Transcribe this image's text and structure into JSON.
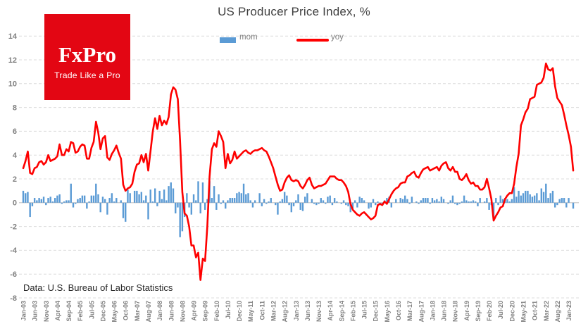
{
  "title": "US Producer Price Index, %",
  "logo": {
    "brand": "FxPro",
    "tagline": "Trade Like a Pro",
    "bg_color": "#e30613",
    "text_color": "#ffffff"
  },
  "legend": {
    "mom_label": "mom",
    "yoy_label": "yoy"
  },
  "source_note": "Data: U.S. Bureau of Labor Statistics",
  "colors": {
    "mom_bar": "#5B9BD5",
    "yoy_line": "#FE0000",
    "grid": "#dcdcdc",
    "zero_line": "#c3c3c3",
    "axis_text": "#808080"
  },
  "chart_data": {
    "type": "bar+line combo",
    "title": "US Producer Price Index, %",
    "frequency": "monthly",
    "start_month": "Jan-03",
    "end_month": "Mar-23",
    "ylim": [
      -8,
      14
    ],
    "y_ticks": [
      -8,
      -6,
      -4,
      -2,
      0,
      2,
      4,
      6,
      8,
      10,
      12,
      14
    ],
    "grid": "horizontal dashed",
    "legend_position": "top center",
    "x_tick_every": 5,
    "x_tick_labels": [
      "Jan-03",
      "Jun-03",
      "Nov-03",
      "Apr-04",
      "Sep-04",
      "Feb-05",
      "Jul-05",
      "Dec-05",
      "May-06",
      "Oct-06",
      "Mar-07",
      "Aug-07",
      "Jan-08",
      "Jun-08",
      "Nov-08",
      "Apr-09",
      "Sep-09",
      "Feb-10",
      "Jul-10",
      "Dec-10",
      "May-11",
      "Oct-11",
      "Mar-12",
      "Aug-12",
      "Jan-13",
      "Jun-13",
      "Nov-13",
      "Apr-14",
      "Sep-14",
      "Feb-15",
      "Jul-15",
      "Dec-15",
      "May-16",
      "Oct-16",
      "Mar-17",
      "Aug-17",
      "Jan-18",
      "Jun-18",
      "Nov-18",
      "Apr-19",
      "Sep-19",
      "Feb-20",
      "Jul-20",
      "Dec-20",
      "May-21",
      "Oct-21",
      "Mar-22",
      "Aug-22",
      "Jan-23"
    ],
    "series": [
      {
        "name": "mom",
        "type": "bar",
        "color": "#5B9BD5",
        "values": [
          1.0,
          0.8,
          0.9,
          -1.2,
          -0.3,
          0.4,
          0.2,
          0.4,
          0.3,
          0.5,
          -0.2,
          0.4,
          0.5,
          0.1,
          0.4,
          0.6,
          0.7,
          -0.1,
          0.1,
          0.2,
          0.2,
          1.6,
          -0.4,
          -0.1,
          0.3,
          0.4,
          0.6,
          0.6,
          -0.5,
          0.1,
          0.6,
          0.6,
          1.6,
          0.7,
          -0.8,
          0.5,
          0.3,
          -1.0,
          0.4,
          0.8,
          0.1,
          0.4,
          0.0,
          0.2,
          -1.3,
          -1.6,
          1.1,
          0.8,
          0.0,
          1.0,
          1.0,
          0.7,
          0.9,
          0.2,
          0.6,
          -1.4,
          1.1,
          0.1,
          1.2,
          -0.3,
          1.0,
          0.3,
          1.1,
          0.2,
          1.4,
          1.7,
          1.2,
          -0.9,
          -0.4,
          -2.9,
          -2.4,
          -1.2,
          0.8,
          -0.4,
          -1.0,
          0.7,
          0.2,
          1.8,
          -0.9,
          1.7,
          -0.6,
          0.3,
          1.8,
          0.4,
          1.4,
          -0.6,
          0.7,
          -0.1,
          0.2,
          -0.5,
          0.2,
          0.4,
          0.4,
          0.4,
          0.8,
          0.9,
          0.8,
          1.6,
          0.7,
          0.8,
          0.2,
          -0.4,
          0.2,
          0.0,
          0.8,
          -0.3,
          0.3,
          -0.1,
          0.1,
          0.4,
          0.0,
          -0.2,
          -1.0,
          0.1,
          0.3,
          0.9,
          0.6,
          -0.2,
          -0.8,
          -0.3,
          0.2,
          0.7,
          -0.6,
          -0.7,
          0.5,
          0.8,
          0.0,
          0.3,
          -0.1,
          -0.2,
          -0.1,
          0.4,
          0.2,
          -0.1,
          0.5,
          0.6,
          -0.2,
          0.4,
          0.1,
          0.0,
          -0.1,
          0.2,
          -0.2,
          -0.3,
          -0.8,
          -0.5,
          0.2,
          -0.4,
          0.5,
          0.4,
          0.2,
          0.0,
          -0.5,
          -0.4,
          0.3,
          -0.2,
          0.1,
          -0.2,
          -0.1,
          0.2,
          0.4,
          0.5,
          -0.4,
          0.0,
          0.3,
          0.0,
          0.4,
          0.3,
          0.6,
          0.3,
          -0.1,
          0.5,
          0.0,
          0.1,
          -0.1,
          0.2,
          0.4,
          0.4,
          0.4,
          -0.1,
          0.4,
          0.2,
          0.3,
          0.1,
          0.5,
          0.3,
          0.0,
          -0.1,
          0.2,
          0.6,
          -0.1,
          -0.2,
          -0.1,
          0.1,
          0.6,
          0.2,
          0.1,
          0.1,
          0.2,
          0.1,
          -0.3,
          0.4,
          0.0,
          0.1,
          0.4,
          -0.6,
          -0.2,
          -1.3,
          0.4,
          -0.2,
          0.6,
          0.3,
          0.4,
          0.3,
          0.1,
          0.3,
          1.3,
          0.5,
          1.0,
          0.6,
          0.8,
          1.0,
          1.0,
          0.7,
          0.5,
          0.6,
          0.8,
          0.2,
          1.2,
          0.9,
          1.6,
          0.4,
          0.8,
          1.0,
          -0.4,
          -0.2,
          0.3,
          0.4,
          0.4,
          -0.4,
          0.4,
          0.0,
          -0.5
        ]
      },
      {
        "name": "yoy",
        "type": "line",
        "color": "#FE0000",
        "values": [
          2.9,
          3.5,
          4.3,
          2.5,
          2.4,
          2.9,
          3.0,
          3.4,
          3.5,
          3.2,
          3.4,
          4.0,
          3.5,
          3.6,
          3.7,
          3.9,
          4.9,
          4.0,
          4.0,
          4.5,
          4.3,
          5.1,
          5.0,
          4.2,
          4.3,
          4.7,
          4.9,
          4.8,
          3.7,
          3.7,
          4.6,
          5.1,
          6.8,
          5.9,
          4.5,
          5.4,
          5.6,
          3.8,
          3.6,
          4.1,
          4.4,
          4.8,
          4.2,
          3.7,
          1.5,
          1.0,
          1.2,
          1.3,
          1.6,
          2.6,
          3.2,
          3.3,
          4.0,
          3.4,
          4.1,
          2.7,
          4.3,
          6.0,
          7.1,
          6.2,
          7.3,
          6.5,
          6.9,
          6.6,
          7.2,
          9.1,
          9.7,
          9.5,
          8.7,
          5.2,
          0.9,
          -0.9,
          -1.1,
          -2.0,
          -3.6,
          -3.6,
          -4.6,
          -4.2,
          -6.5,
          -4.7,
          -4.9,
          -2.0,
          2.2,
          4.5,
          5.0,
          4.7,
          6.0,
          5.6,
          5.1,
          2.9,
          4.1,
          3.3,
          3.6,
          4.3,
          3.7,
          3.9,
          4.1,
          4.3,
          4.4,
          4.2,
          4.1,
          4.3,
          4.4,
          4.4,
          4.5,
          4.6,
          4.4,
          4.3,
          3.9,
          3.4,
          2.9,
          2.2,
          1.5,
          1.0,
          1.1,
          1.7,
          2.1,
          2.3,
          1.9,
          1.8,
          1.9,
          1.8,
          1.4,
          1.2,
          1.5,
          1.9,
          2.1,
          1.5,
          1.2,
          1.3,
          1.4,
          1.4,
          1.5,
          1.6,
          1.9,
          2.2,
          2.2,
          2.2,
          2.0,
          1.9,
          1.9,
          1.7,
          1.4,
          0.9,
          -0.1,
          -0.6,
          -0.8,
          -1.0,
          -1.1,
          -0.9,
          -0.8,
          -1.0,
          -1.2,
          -1.4,
          -1.3,
          -1.1,
          -0.2,
          -0.1,
          -0.2,
          0.1,
          -0.1,
          0.3,
          0.7,
          1.0,
          1.2,
          1.3,
          1.6,
          1.7,
          1.7,
          2.2,
          2.3,
          2.5,
          2.6,
          2.2,
          2.1,
          2.5,
          2.8,
          2.9,
          3.0,
          2.7,
          2.8,
          2.9,
          3.0,
          2.7,
          3.1,
          3.3,
          3.4,
          2.9,
          2.7,
          3.0,
          2.6,
          2.6,
          2.0,
          1.9,
          2.1,
          2.4,
          1.9,
          1.6,
          1.7,
          1.4,
          1.4,
          1.1,
          1.1,
          1.3,
          2.0,
          1.2,
          0.3,
          -1.5,
          -1.1,
          -0.8,
          -0.4,
          -0.3,
          0.3,
          0.6,
          0.8,
          0.8,
          1.6,
          3.0,
          4.1,
          6.5,
          7.0,
          7.6,
          7.9,
          8.7,
          8.8,
          8.9,
          9.9,
          10.0,
          10.1,
          10.5,
          11.7,
          11.2,
          11.1,
          11.3,
          9.8,
          8.8,
          8.5,
          8.2,
          7.4,
          6.5,
          5.7,
          4.7,
          2.7
        ]
      }
    ]
  }
}
